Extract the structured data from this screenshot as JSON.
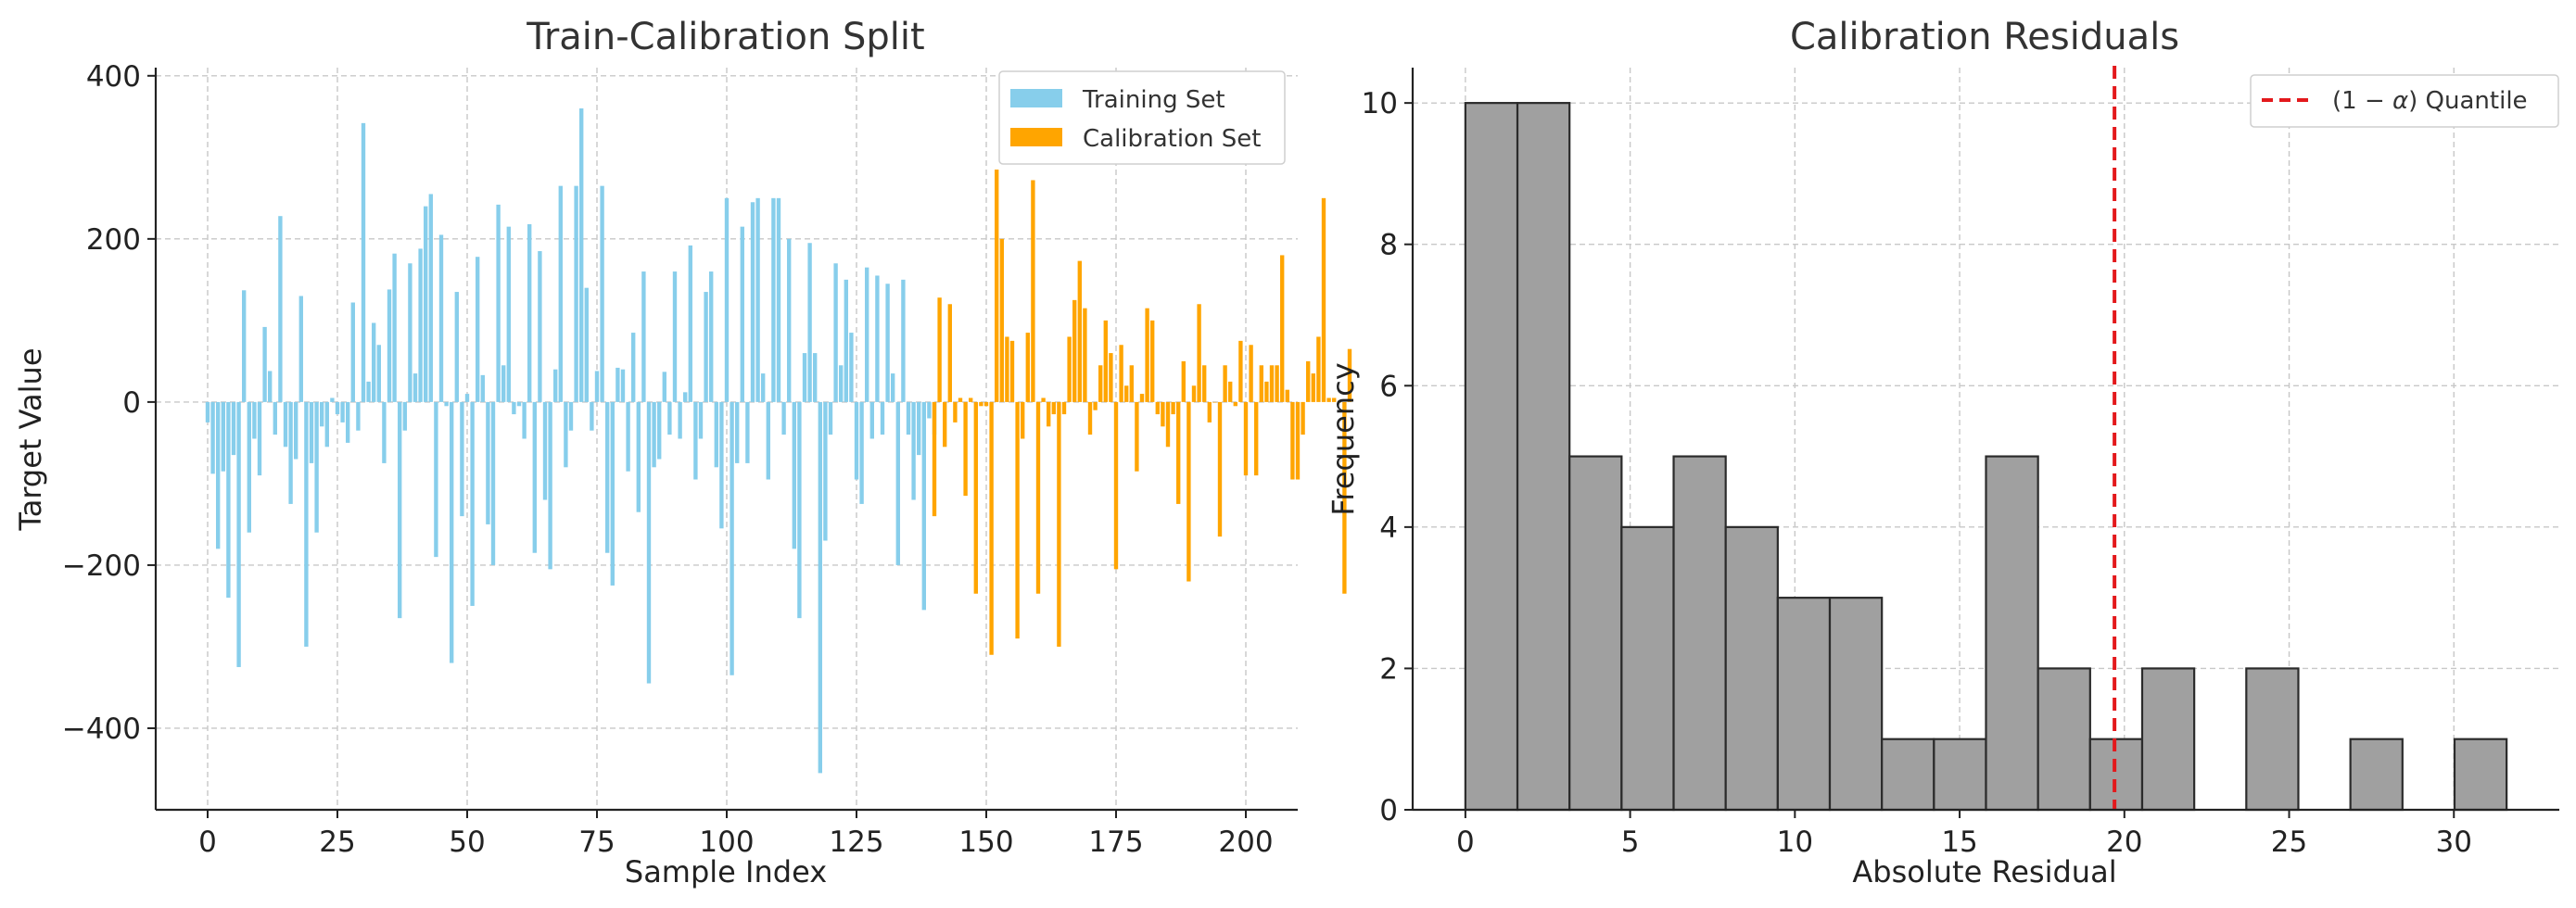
{
  "colors": {
    "training": "#87CEEB",
    "calibration": "#FFA500",
    "hist_fill": "#A0A0A0",
    "hist_edge": "#2b2b2b",
    "quantile": "#E3191C"
  },
  "chart_data": [
    {
      "type": "bar",
      "title": "Train-Calibration Split",
      "xlabel": "Sample Index",
      "ylabel": "Target Value",
      "xlim": [
        -10,
        210
      ],
      "ylim": [
        -500,
        410
      ],
      "xticks": [
        0,
        25,
        50,
        75,
        100,
        125,
        150,
        175,
        200
      ],
      "xtick_labels": [
        "0",
        "25",
        "50",
        "75",
        "100",
        "125",
        "150",
        "175",
        "200"
      ],
      "yticks": [
        -400,
        -200,
        0,
        200,
        400
      ],
      "ytick_labels": [
        "−400",
        "−200",
        "0",
        "200",
        "400"
      ],
      "grid": true,
      "legend_position": "top-right",
      "series": [
        {
          "name": "Training Set",
          "x_start": 0,
          "values": [
            -25,
            -88,
            -180,
            -85,
            -240,
            -65,
            -325,
            137,
            -160,
            -45,
            -90,
            92,
            38,
            -40,
            228,
            -55,
            -125,
            -70,
            130,
            -300,
            -75,
            -160,
            -30,
            -55,
            5,
            -15,
            -25,
            -50,
            122,
            -35,
            342,
            25,
            97,
            70,
            -75,
            138,
            182,
            -265,
            -35,
            170,
            35,
            188,
            240,
            255,
            -190,
            205,
            -5,
            -320,
            135,
            -140,
            10,
            -250,
            178,
            33,
            -150,
            -200,
            242,
            45,
            215,
            -15,
            -5,
            -45,
            218,
            -185,
            185,
            -120,
            -205,
            40,
            265,
            -80,
            -35,
            265,
            360,
            140,
            -35,
            38,
            265,
            -185,
            -225,
            42,
            40,
            -85,
            85,
            -135,
            160,
            -345,
            -80,
            -70,
            37,
            -40,
            160,
            -45,
            12,
            192,
            -95,
            -45,
            135,
            160,
            -80,
            -155,
            250,
            -335,
            -75,
            215,
            -75,
            245,
            250,
            35,
            -95,
            250,
            250,
            -40,
            200,
            -180,
            -265,
            60,
            195,
            60,
            -455,
            -170,
            -40,
            170,
            45,
            150,
            85,
            -95,
            -125,
            165,
            -45,
            155,
            -40,
            145,
            35,
            -200,
            150,
            -40,
            -120,
            -65,
            -255,
            -20,
            -40
          ]
        },
        {
          "name": "Calibration Set",
          "x_start": 140,
          "values": [
            -140,
            128,
            -55,
            120,
            -25,
            5,
            -115,
            5,
            -235,
            -5,
            -5,
            -310,
            285,
            200,
            80,
            75,
            -290,
            -45,
            85,
            272,
            -235,
            5,
            -30,
            -15,
            -300,
            -15,
            80,
            125,
            173,
            115,
            -40,
            -10,
            45,
            100,
            60,
            -205,
            70,
            20,
            45,
            -85,
            10,
            115,
            100,
            -15,
            -30,
            -55,
            -15,
            -125,
            50,
            -220,
            20,
            120,
            45,
            -25,
            0,
            -165,
            45,
            25,
            -5,
            75,
            -90,
            70,
            -90,
            45,
            25,
            45,
            45,
            180,
            15,
            -95,
            -95,
            -40,
            50,
            35,
            80,
            250,
            5,
            5,
            0,
            -235,
            65
          ]
        }
      ]
    },
    {
      "type": "histogram",
      "title": "Calibration Residuals",
      "xlabel": "Absolute Residual",
      "ylabel": "Frequency",
      "xlim": [
        -1.6,
        33.2
      ],
      "ylim": [
        0,
        10.5
      ],
      "xticks": [
        0,
        5,
        10,
        15,
        20,
        25,
        30
      ],
      "xtick_labels": [
        "0",
        "5",
        "10",
        "15",
        "20",
        "25",
        "30"
      ],
      "yticks": [
        0,
        2,
        4,
        6,
        8,
        10
      ],
      "ytick_labels": [
        "0",
        "2",
        "4",
        "6",
        "8",
        "10"
      ],
      "grid": true,
      "legend_position": "top-right",
      "bin_start": 0,
      "bin_width": 1.58,
      "counts": [
        10,
        10,
        5,
        4,
        5,
        4,
        3,
        3,
        1,
        1,
        5,
        2,
        1,
        2,
        0,
        2,
        0,
        1,
        0,
        1
      ],
      "quantile_line": {
        "label_prefix": "(1 − ",
        "label_symbol": "α",
        "label_suffix": ") Quantile",
        "x": 19.7
      }
    }
  ]
}
